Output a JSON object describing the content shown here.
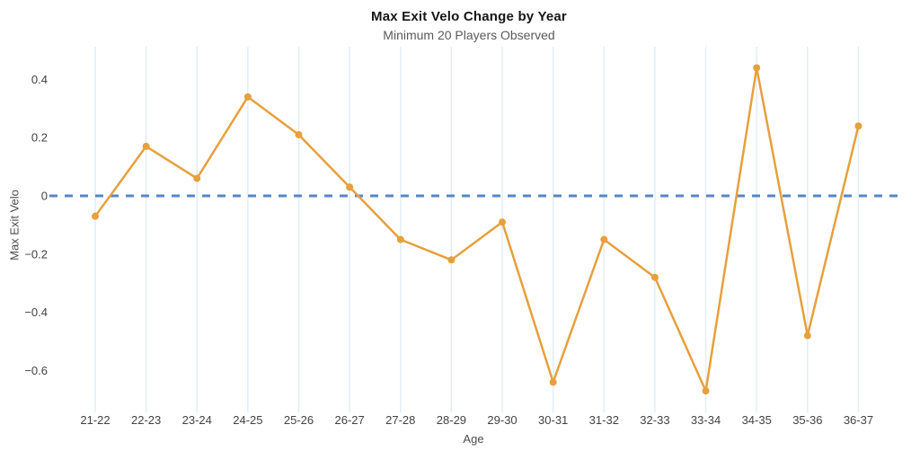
{
  "header": {
    "title": "Max Exit Velo Change by Year",
    "subtitle": "Minimum 20 Players Observed"
  },
  "axes": {
    "x_title": "Age",
    "y_title": "Max Exit Velo"
  },
  "chart_data": {
    "type": "line",
    "title": "Max Exit Velo Change by Year",
    "subtitle": "Minimum 20 Players Observed",
    "xlabel": "Age",
    "ylabel": "Max Exit Velo",
    "categories": [
      "21-22",
      "22-23",
      "23-24",
      "24-25",
      "25-26",
      "26-27",
      "27-28",
      "28-29",
      "29-30",
      "30-31",
      "31-32",
      "32-33",
      "33-34",
      "34-35",
      "35-36",
      "36-37"
    ],
    "values": [
      -0.07,
      0.17,
      0.06,
      0.34,
      0.21,
      0.03,
      -0.15,
      -0.22,
      -0.09,
      -0.64,
      -0.15,
      -0.28,
      -0.67,
      0.44,
      -0.48,
      0.24
    ],
    "yticks": [
      0.4,
      0.2,
      0,
      -0.2,
      -0.4,
      -0.6
    ],
    "ytick_labels": [
      "0.4",
      "0.2",
      "0",
      "−0.2",
      "−0.4",
      "−0.6"
    ],
    "ylim": [
      -0.74,
      0.51
    ],
    "zero_reference_line": 0,
    "grid": "vertical-only",
    "legend": "none",
    "marker": "circle",
    "colors": {
      "series": "#E6A03C",
      "zero_line": "#5587C8",
      "gridline": "#E3EDF7",
      "title": "#161616",
      "subtitle": "#5A5A5A",
      "tick_label": "#424242",
      "axis_title": "#4A4A4A"
    }
  }
}
